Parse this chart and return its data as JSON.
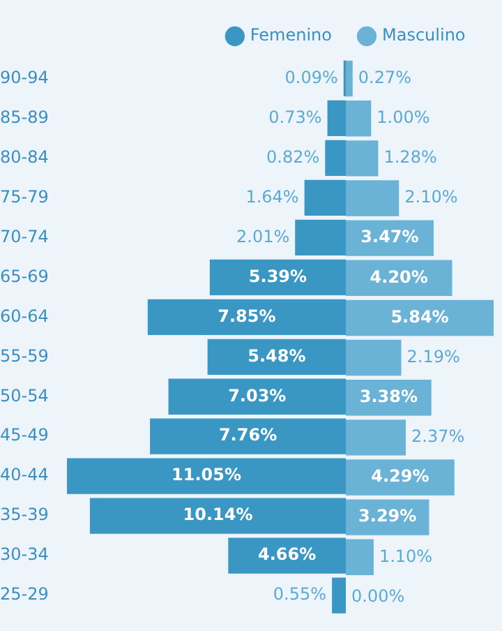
{
  "chart_data": [
    {
      "type": "bar",
      "orientation": "horizontal",
      "categories": [
        "90-94",
        "85-89",
        "80-84",
        "75-79",
        "70-74",
        "65-69",
        "60-64",
        "55-59",
        "50-54",
        "45-49",
        "40-44",
        "35-39",
        "30-34",
        "25-29"
      ],
      "xlim": [
        11.05,
        0
      ],
      "tick_labels": "y",
      "legend": "top right",
      "series": [
        {
          "name": "Femenino",
          "color": "#3a97c4",
          "values": [
            0.09,
            0.73,
            0.82,
            1.64,
            2.01,
            5.39,
            7.85,
            5.48,
            7.03,
            7.76,
            11.05,
            10.14,
            4.66,
            0.55
          ],
          "value_labels": [
            "0.09%",
            "0.73%",
            "0.82%",
            "1.64%",
            "2.01%",
            "5.39%",
            "7.85%",
            "5.48%",
            "7.03%",
            "7.76%",
            "11.05%",
            "10.14%",
            "4.66%",
            "0.55%"
          ]
        }
      ]
    },
    {
      "type": "bar",
      "orientation": "horizontal",
      "categories": [
        null,
        null,
        null,
        null,
        null,
        null,
        null,
        null,
        null,
        null,
        null,
        null,
        null,
        null
      ],
      "xlim": [
        0,
        5.84
      ],
      "tick_labels": false,
      "legend": "top left",
      "series": [
        {
          "name": "Masculino",
          "color": "#6ab3d6",
          "values": [
            0.27,
            1.0,
            1.28,
            2.1,
            3.47,
            4.2,
            5.84,
            2.19,
            3.38,
            2.37,
            4.29,
            3.29,
            1.1,
            0.0
          ],
          "value_labels": [
            "0.27%",
            "1.00%",
            "1.28%",
            "2.10%",
            "3.47%",
            "4.20%",
            "5.84%",
            "2.19%",
            "3.38%",
            "2.37%",
            "4.29%",
            "3.29%",
            "1.10%",
            "0.00%"
          ]
        }
      ]
    }
  ]
}
